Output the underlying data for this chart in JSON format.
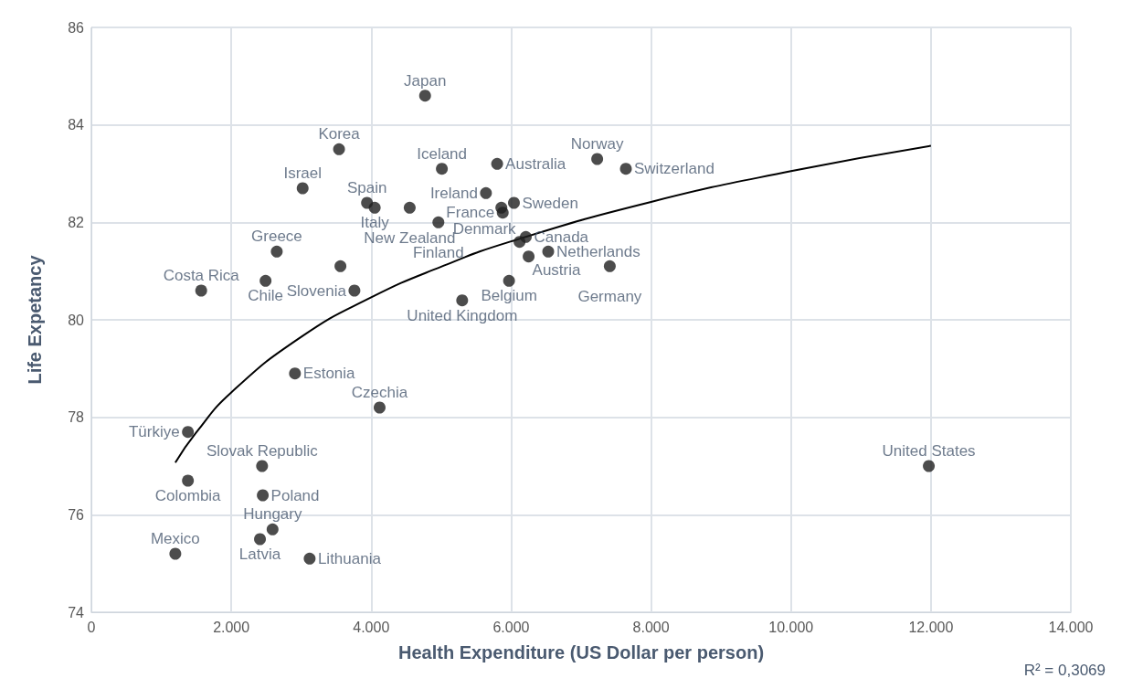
{
  "chart_data": {
    "type": "scatter",
    "xlabel": "Health Expenditure (US Dollar per person)",
    "ylabel": "Life Expetancy",
    "xlim": [
      0,
      14000
    ],
    "xticks": [
      0,
      {
        "value": 2000,
        "label": "2.000"
      },
      {
        "value": 4000,
        "label": "4.000"
      },
      {
        "value": 6000,
        "label": "6.000"
      },
      {
        "value": 8000,
        "label": "8.000"
      },
      {
        "value": 10000,
        "label": "10.000"
      },
      {
        "value": 12000,
        "label": "12.000"
      },
      {
        "value": 14000,
        "label": "14.000"
      }
    ],
    "ylim": [
      74,
      86
    ],
    "yticks": [
      74,
      76,
      78,
      80,
      82,
      84,
      86
    ],
    "grid": true,
    "marker": "circle",
    "series": [
      {
        "color": "#1f1f1f",
        "x": [
          4770,
          3540,
          5010,
          5800,
          7230,
          7640,
          3020,
          5640,
          3940,
          4050,
          4550,
          6040,
          5860,
          5880,
          4960,
          6210,
          6120,
          6530,
          6250,
          7410,
          5970,
          5300,
          2650,
          3560,
          3760,
          1570,
          2490,
          2910,
          4120,
          1380,
          1380,
          2440,
          2450,
          2590,
          2410,
          3120,
          1200,
          11970
        ],
        "values": [
          84.6,
          83.5,
          83.1,
          83.2,
          83.3,
          83.1,
          82.7,
          82.6,
          82.4,
          82.3,
          82.3,
          82.4,
          82.3,
          82.2,
          82.0,
          81.7,
          81.6,
          81.4,
          81.3,
          81.1,
          80.8,
          80.4,
          81.4,
          81.1,
          80.6,
          80.6,
          80.8,
          78.9,
          78.2,
          77.7,
          76.7,
          77.0,
          76.4,
          75.7,
          75.5,
          75.1,
          75.2,
          77.0
        ]
      },
      {
        "type": "line",
        "color": "#000000",
        "marker": "none",
        "x": [
          1200,
          1500,
          2000,
          3000,
          4000,
          5000,
          6000,
          8000,
          10000,
          12000
        ],
        "values": [
          77.07,
          77.69,
          78.51,
          79.65,
          80.46,
          81.09,
          81.61,
          82.42,
          83.05,
          83.57
        ]
      }
    ],
    "annotations": [
      {
        "text": "Japan",
        "x": 4770,
        "y": 84.6
      },
      {
        "text": "Korea",
        "x": 3540,
        "y": 83.5
      },
      {
        "text": "Iceland",
        "x": 5010,
        "y": 83.1
      },
      {
        "text": "Australia",
        "x": 5800,
        "y": 83.2
      },
      {
        "text": "Norway",
        "x": 7230,
        "y": 83.3
      },
      {
        "text": "Switzerland",
        "x": 7640,
        "y": 83.1
      },
      {
        "text": "Israel",
        "x": 3020,
        "y": 82.7
      },
      {
        "text": "Ireland",
        "x": 5640,
        "y": 82.6
      },
      {
        "text": "Spain",
        "x": 3940,
        "y": 82.4
      },
      {
        "text": "Italy",
        "x": 4050,
        "y": 82.3
      },
      {
        "text": "New Zealand",
        "x": 4550,
        "y": 82.3
      },
      {
        "text": "Sweden",
        "x": 6040,
        "y": 82.4
      },
      {
        "text": "France",
        "x": 5880,
        "y": 82.2
      },
      {
        "text": "Finland",
        "x": 4960,
        "y": 82.0
      },
      {
        "text": "Canada",
        "x": 6210,
        "y": 81.7
      },
      {
        "text": "Denmark",
        "x": 6120,
        "y": 81.6
      },
      {
        "text": "Netherlands",
        "x": 6530,
        "y": 81.4
      },
      {
        "text": "Austria",
        "x": 6250,
        "y": 81.3
      },
      {
        "text": "Germany",
        "x": 7410,
        "y": 81.1
      },
      {
        "text": "Belgium",
        "x": 5970,
        "y": 80.8
      },
      {
        "text": "United Kingdom",
        "x": 5300,
        "y": 80.4
      },
      {
        "text": "Greece",
        "x": 2650,
        "y": 81.4
      },
      {
        "text": "Slovenia",
        "x": 3760,
        "y": 80.6
      },
      {
        "text": "Costa Rica",
        "x": 1570,
        "y": 80.6
      },
      {
        "text": "Chile",
        "x": 2490,
        "y": 80.8
      },
      {
        "text": "Estonia",
        "x": 2910,
        "y": 78.9
      },
      {
        "text": "Czechia",
        "x": 4120,
        "y": 78.2
      },
      {
        "text": "Türkiye",
        "x": 1380,
        "y": 77.7
      },
      {
        "text": "Colombia",
        "x": 1380,
        "y": 76.7
      },
      {
        "text": "Slovak Republic",
        "x": 2440,
        "y": 77.0
      },
      {
        "text": "Poland",
        "x": 2450,
        "y": 76.4
      },
      {
        "text": "Hungary",
        "x": 2590,
        "y": 75.7
      },
      {
        "text": "Latvia",
        "x": 2410,
        "y": 75.5
      },
      {
        "text": "Lithuania",
        "x": 3120,
        "y": 75.1
      },
      {
        "text": "Mexico",
        "x": 1200,
        "y": 75.2
      },
      {
        "text": "United States",
        "x": 11970,
        "y": 77.0
      },
      "R² = 0,3069"
    ]
  }
}
